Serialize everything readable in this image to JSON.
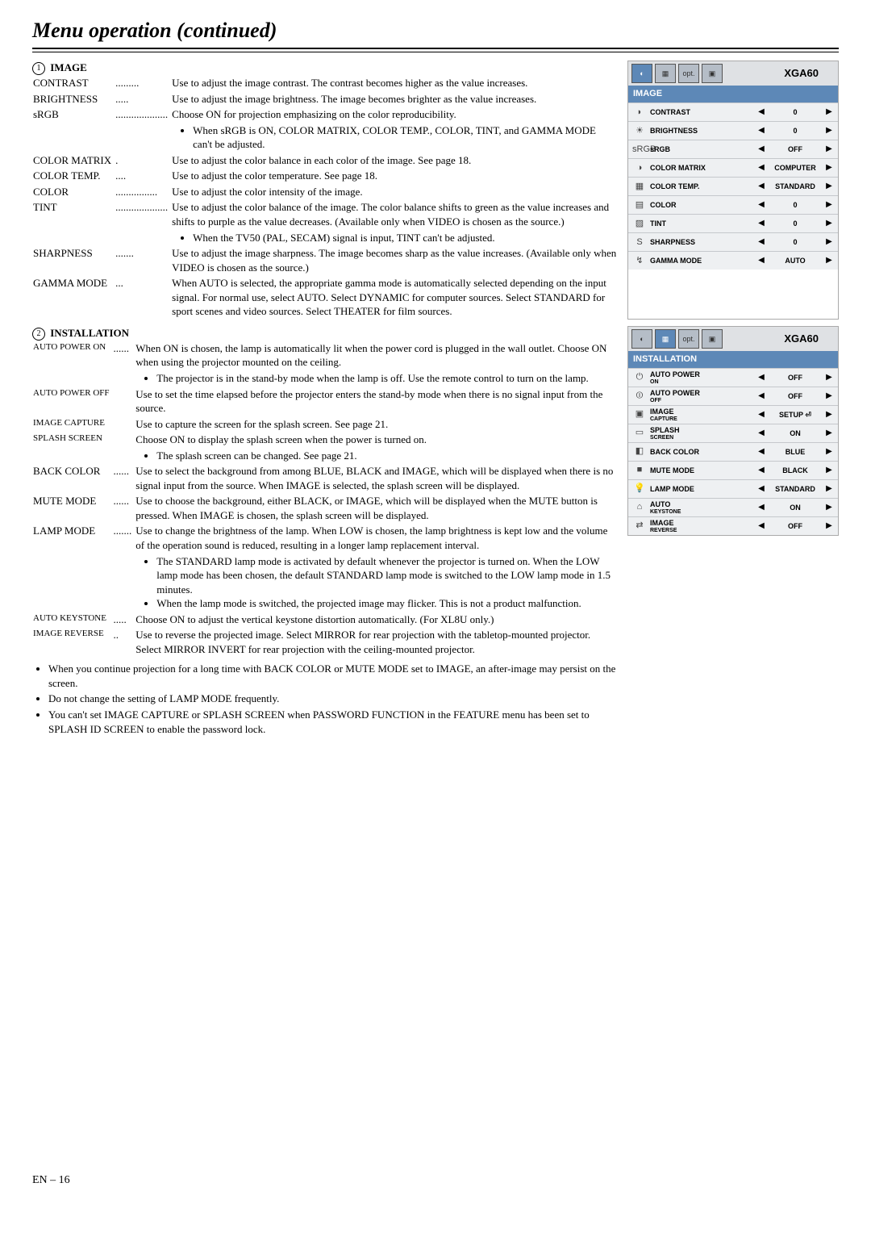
{
  "page": {
    "title": "Menu operation (continued)",
    "footer": "EN – 16"
  },
  "image_section": {
    "num": "1",
    "heading": "IMAGE",
    "rows": [
      {
        "key": "CONTRAST",
        "dots": ".........",
        "val": "Use to adjust the image contrast. The contrast becomes higher as the value increases."
      },
      {
        "key": "BRIGHTNESS",
        "dots": ".....",
        "val": "Use to adjust the image brightness. The image becomes brighter as the value increases."
      },
      {
        "key": "sRGB",
        "dots": "....................",
        "val": "Choose ON for projection emphasizing on the color reproducibility."
      },
      {
        "bullet": "When sRGB is ON, COLOR MATRIX, COLOR TEMP., COLOR, TINT, and GAMMA MODE can't be adjusted."
      },
      {
        "key": "COLOR MATRIX",
        "dots": ".",
        "val": "Use to adjust the color balance in each color of the image. See page 18."
      },
      {
        "key": "COLOR TEMP.",
        "dots": "....",
        "val": "Use to adjust the color temperature. See page 18."
      },
      {
        "key": "COLOR",
        "dots": "................",
        "val": "Use to adjust the color intensity of the image."
      },
      {
        "key": "TINT",
        "dots": "....................",
        "val": "Use to adjust the color balance of the image. The color balance shifts to green as the value increases and shifts to purple as the value decreases. (Available only when VIDEO is chosen as the source.)"
      },
      {
        "bullet": "When the TV50 (PAL, SECAM) signal is input, TINT can't be adjusted."
      },
      {
        "key": "SHARPNESS",
        "dots": ".......",
        "val": "Use to adjust the image sharpness. The image becomes sharp as the value increases. (Available only when VIDEO is chosen as the source.)"
      },
      {
        "key": "GAMMA MODE",
        "dots": "...",
        "val": "When AUTO is selected, the appropriate gamma mode is automatically selected depending on the input signal. For normal use, select  AUTO. Select DYNAMIC for computer sources. Select STANDARD for sport scenes and video sources. Select THEATER for film sources."
      }
    ]
  },
  "install_section": {
    "num": "2",
    "heading": "INSTALLATION",
    "rows": [
      {
        "key": "AUTO POWER ON",
        "dots": "......",
        "val": "When ON is chosen, the lamp is automatically lit when the power cord is plugged in the wall outlet. Choose ON when using the projector mounted on the ceiling."
      },
      {
        "bullet": "The projector is in the stand-by mode when the lamp is off.  Use the remote control to turn on the lamp."
      },
      {
        "key": "AUTO POWER OFF",
        "dots": "",
        "val": "Use to set the time elapsed before the projector enters the stand-by mode when there is no signal input from the source."
      },
      {
        "key": "IMAGE CAPTURE",
        "dots": "",
        "val": "Use to capture the screen for the splash screen. See page 21."
      },
      {
        "key": "SPLASH SCREEN",
        "dots": "",
        "val": "Choose ON to display the splash screen when the power is turned on."
      },
      {
        "bullet": "The splash screen can be changed. See page 21."
      },
      {
        "key": "BACK COLOR",
        "dots": "......",
        "val": "Use to select the background from among BLUE, BLACK and IMAGE, which will be displayed when there is no signal input from the source. When IMAGE is selected, the splash screen will be displayed."
      },
      {
        "key": "MUTE MODE",
        "dots": "......",
        "val": "Use to choose the background, either BLACK, or IMAGE, which will be displayed when the MUTE button is pressed. When IMAGE is chosen, the splash screen will be displayed."
      },
      {
        "key": "LAMP MODE",
        "dots": ".......",
        "val": "Use to change the brightness of the lamp. When LOW is chosen, the lamp brightness is kept low and the volume of the operation sound is reduced, resulting in a longer lamp replacement interval."
      },
      {
        "bullet": "The STANDARD lamp mode is activated by default whenever the projector is turned on. When the LOW lamp mode has been chosen, the default STANDARD lamp mode is switched to the LOW lamp mode in 1.5 minutes."
      },
      {
        "bullet": "When the lamp mode is switched, the projected image may flicker. This is not a product malfunction."
      },
      {
        "key": "AUTO  KEYSTONE",
        "dots": ".....",
        "val": "Choose ON to adjust the vertical keystone distortion automatically. (For XL8U only.)"
      },
      {
        "key": "IMAGE REVERSE",
        "dots": "..",
        "val": "Use to reverse the projected image. Select MIRROR for rear projection with the tabletop-mounted projector. Select MIRROR INVERT for rear projection with the ceiling-mounted projector."
      }
    ],
    "notes": [
      "When you continue projection for a long time with BACK COLOR or MUTE MODE set to IMAGE, an after-image may persist on the screen.",
      "Do not change the setting of LAMP MODE frequently.",
      "You can't set IMAGE CAPTURE or SPLASH SCREEN when PASSWORD FUNCTION in the FEATURE menu has been set to SPLASH ID SCREEN to enable the password lock."
    ]
  },
  "menu1": {
    "title": "XGA60",
    "header": "IMAGE",
    "items": [
      {
        "icon": "◗",
        "label": "CONTRAST",
        "value": "0"
      },
      {
        "icon": "☀",
        "label": "BRIGHTNESS",
        "value": "0"
      },
      {
        "icon": "sRGB",
        "label": "sRGB",
        "value": "OFF"
      },
      {
        "icon": "◑",
        "label": "COLOR MATRIX",
        "value": "COMPUTER"
      },
      {
        "icon": "▦",
        "label": "COLOR TEMP.",
        "value": "STANDARD"
      },
      {
        "icon": "▤",
        "label": "COLOR",
        "value": "0"
      },
      {
        "icon": "▨",
        "label": "TINT",
        "value": "0"
      },
      {
        "icon": "S",
        "label": "SHARPNESS",
        "value": "0"
      },
      {
        "icon": "↯",
        "label": "GAMMA MODE",
        "value": "AUTO"
      }
    ]
  },
  "menu2": {
    "title": "XGA60",
    "header": "INSTALLATION",
    "items": [
      {
        "icon": "⏻",
        "label": "AUTO POWER",
        "sub": "ON",
        "value": "OFF"
      },
      {
        "icon": "⏼",
        "label": "AUTO POWER",
        "sub": "OFF",
        "value": "OFF"
      },
      {
        "icon": "▣",
        "label": "IMAGE",
        "sub": "CAPTURE",
        "value": "SETUP ⏎"
      },
      {
        "icon": "▭",
        "label": "SPLASH",
        "sub": "SCREEN",
        "value": "ON"
      },
      {
        "icon": "◧",
        "label": "BACK COLOR",
        "value": "BLUE"
      },
      {
        "icon": "■",
        "label": "MUTE MODE",
        "value": "BLACK"
      },
      {
        "icon": "💡",
        "label": "LAMP MODE",
        "value": "STANDARD"
      },
      {
        "icon": "⌂",
        "label": "AUTO",
        "sub": "KEYSTONE",
        "value": "ON"
      },
      {
        "icon": "⇄",
        "label": "IMAGE",
        "sub": "REVERSE",
        "value": "OFF"
      }
    ]
  }
}
